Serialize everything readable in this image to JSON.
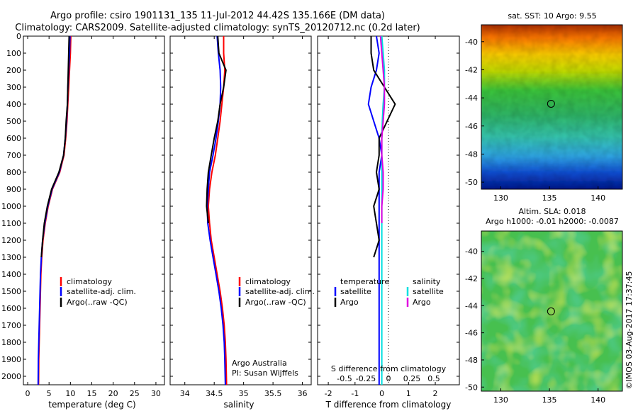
{
  "title": {
    "line1": "Argo profile: csiro 1901131_135 11-Jul-2012 44.42S 135.166E (DM data)",
    "line2": "Climatology: CARS2009. Satellite-adjusted climatology: synTS_20120712.nc (0.2d later)"
  },
  "credit": {
    "org": "Argo Australia",
    "pi": "PI: Susan Wijffels",
    "stamp": "©IMOS 03-Aug-2017 17:37:45"
  },
  "colors": {
    "climatology": "#ff0000",
    "satellite": "#0000ff",
    "argo": "#000000",
    "sal_satellite": "#00e0e0",
    "sal_argo": "#e000e0"
  },
  "chart_data": [
    {
      "type": "line",
      "xlabel": "temperature (deg C)",
      "xlim": [
        -1,
        32
      ],
      "xticks": [
        0,
        5,
        10,
        15,
        20,
        25,
        30
      ],
      "ylim": [
        2050,
        0
      ],
      "yticks": [
        0,
        100,
        200,
        300,
        400,
        500,
        600,
        700,
        800,
        900,
        1000,
        1100,
        1200,
        1300,
        1400,
        1500,
        1600,
        1700,
        1800,
        1900,
        2000
      ],
      "legend": [
        "climatology",
        "satellite-adj. clim.",
        "Argo(..raw -QC)"
      ],
      "series": [
        {
          "name": "climatology",
          "color": "#ff0000",
          "x": [
            10.1,
            10.0,
            9.8,
            9.6,
            9.4,
            9.2,
            8.9,
            8.5,
            7.5,
            5.8,
            4.8,
            4.1,
            3.6,
            3.3,
            3.1,
            3.0,
            2.9,
            2.8,
            2.7,
            2.6,
            2.55
          ],
          "y": [
            0,
            100,
            200,
            300,
            400,
            500,
            600,
            700,
            800,
            900,
            1000,
            1100,
            1200,
            1300,
            1400,
            1500,
            1600,
            1700,
            1800,
            1900,
            2050
          ]
        },
        {
          "name": "satellite-adj. clim.",
          "color": "#0000ff",
          "x": [
            9.9,
            9.8,
            9.6,
            9.4,
            9.3,
            9.1,
            8.8,
            8.4,
            7.4,
            5.7,
            4.7,
            4.0,
            3.5,
            3.2,
            3.0,
            2.9,
            2.8,
            2.7,
            2.6,
            2.5,
            2.45
          ],
          "y": [
            0,
            100,
            200,
            300,
            400,
            500,
            600,
            700,
            800,
            900,
            1000,
            1100,
            1200,
            1300,
            1400,
            1500,
            1600,
            1700,
            1800,
            1900,
            2050
          ]
        },
        {
          "name": "Argo(..raw -QC)",
          "color": "#000000",
          "x": [
            9.7,
            9.6,
            9.5,
            9.4,
            9.3,
            9.0,
            8.8,
            8.4,
            7.3,
            5.6,
            4.6,
            3.9,
            3.5,
            3.2
          ],
          "y": [
            0,
            100,
            200,
            300,
            400,
            500,
            600,
            700,
            800,
            900,
            1000,
            1100,
            1200,
            1300
          ]
        }
      ]
    },
    {
      "type": "line",
      "xlabel": "salinity",
      "xlim": [
        33.75,
        36.15
      ],
      "xticks": [
        34,
        34.5,
        35,
        35.5,
        36
      ],
      "ylim": [
        2050,
        0
      ],
      "legend": [
        "climatology",
        "satellite-adj. clim.",
        "Argo(..raw -QC)"
      ],
      "series": [
        {
          "name": "climatology",
          "color": "#ff0000",
          "x": [
            34.66,
            34.66,
            34.68,
            34.66,
            34.63,
            34.6,
            34.56,
            34.52,
            34.46,
            34.42,
            34.4,
            34.42,
            34.45,
            34.5,
            34.55,
            34.6,
            34.64,
            34.67,
            34.69,
            34.7,
            34.71
          ],
          "y": [
            0,
            100,
            200,
            300,
            400,
            500,
            600,
            700,
            800,
            900,
            1000,
            1100,
            1200,
            1300,
            1400,
            1500,
            1600,
            1700,
            1800,
            1900,
            2050
          ]
        },
        {
          "name": "satellite-adj. clim.",
          "color": "#0000ff",
          "x": [
            34.55,
            34.57,
            34.6,
            34.61,
            34.6,
            34.57,
            34.53,
            34.48,
            34.42,
            34.4,
            34.38,
            34.39,
            34.43,
            34.48,
            34.53,
            34.58,
            34.62,
            34.65,
            34.67,
            34.68,
            34.69
          ],
          "y": [
            0,
            100,
            200,
            300,
            400,
            500,
            600,
            700,
            800,
            900,
            1000,
            1100,
            1200,
            1300,
            1400,
            1500,
            1600,
            1700,
            1800,
            1900,
            2050
          ]
        },
        {
          "name": "Argo(..raw -QC)",
          "color": "#000000",
          "x": [
            34.56,
            34.58,
            34.7,
            34.66,
            34.6,
            34.56,
            34.5,
            34.45,
            34.4,
            34.38,
            34.37,
            34.4
          ],
          "y": [
            0,
            100,
            200,
            300,
            400,
            500,
            600,
            700,
            800,
            900,
            1000,
            1100
          ]
        }
      ]
    },
    {
      "type": "line",
      "xlabel": "T difference from climatology",
      "xlabel_top": "S difference from climatology",
      "xlim": [
        -2.4,
        2.9
      ],
      "xticks": [
        -2,
        -1,
        0,
        1,
        2
      ],
      "xticks_top": [
        "-0.5",
        "-0.25",
        "0",
        "0.25",
        "0.5"
      ],
      "ylim": [
        2050,
        0
      ],
      "legend_temperature": {
        "header": "temperature",
        "entries": [
          "satellite",
          "Argo"
        ]
      },
      "legend_salinity": {
        "header": "salinity",
        "entries": [
          "satellite",
          "Argo"
        ]
      },
      "series": [
        {
          "name": "temperature satellite",
          "color": "#0000ff",
          "x": [
            -0.2,
            -0.1,
            -0.2,
            -0.4,
            -0.5,
            -0.3,
            -0.1,
            0,
            -0.1,
            -0.1,
            -0.1,
            -0.1,
            -0.1,
            -0.1,
            -0.1,
            -0.1,
            -0.1,
            -0.1,
            -0.1,
            -0.1,
            -0.1
          ],
          "y": [
            0,
            100,
            200,
            300,
            400,
            500,
            600,
            700,
            800,
            900,
            1000,
            1100,
            1200,
            1300,
            1400,
            1500,
            1600,
            1700,
            1800,
            1900,
            2050
          ]
        },
        {
          "name": "temperature Argo",
          "color": "#000000",
          "x": [
            -0.4,
            -0.4,
            -0.3,
            0.1,
            0.5,
            0.2,
            -0.1,
            -0.1,
            -0.2,
            -0.1,
            -0.3,
            -0.2,
            -0.1,
            -0.3
          ],
          "y": [
            0,
            100,
            200,
            300,
            400,
            500,
            600,
            700,
            800,
            900,
            1000,
            1100,
            1200,
            1300
          ]
        },
        {
          "name": "salinity satellite",
          "color": "#00e0e0",
          "x": [
            0,
            0.05,
            0.1,
            0.1,
            0.05,
            0.02,
            0,
            0,
            0,
            0,
            0,
            0,
            0,
            0,
            0,
            0,
            0,
            0,
            0,
            0,
            0
          ],
          "y": [
            0,
            100,
            200,
            300,
            400,
            500,
            600,
            700,
            800,
            900,
            1000,
            1100,
            1200,
            1300,
            1400,
            1500,
            1600,
            1700,
            1800,
            1900,
            2050
          ]
        },
        {
          "name": "salinity Argo",
          "color": "#e000e0",
          "x": [
            -0.05,
            0,
            0.05,
            0.1,
            0.1,
            0.05,
            0,
            0,
            0.05,
            0.05,
            0,
            0
          ],
          "y": [
            0,
            100,
            200,
            300,
            400,
            500,
            600,
            700,
            800,
            900,
            1000,
            1100
          ]
        }
      ]
    },
    {
      "type": "heatmap",
      "title": "sat. SST: 10 Argo: 9.55",
      "xlim": [
        128,
        142.5
      ],
      "ylim": [
        -50.5,
        -38.8
      ],
      "xticks": [
        130,
        135,
        140
      ],
      "yticks": [
        -40,
        -42,
        -44,
        -46,
        -48,
        -50
      ],
      "marker": {
        "lon": 135.166,
        "lat": -44.42
      }
    },
    {
      "type": "heatmap",
      "title": "Altim. SLA: 0.018",
      "subtitle": "Argo h1000: -0.01 h2000: -0.0087",
      "xlim": [
        128,
        142.5
      ],
      "ylim": [
        -50.3,
        -38.5
      ],
      "xticks": [
        130,
        135,
        140
      ],
      "yticks": [
        -40,
        -42,
        -44,
        -46,
        -48,
        -50
      ],
      "marker": {
        "lon": 135.166,
        "lat": -44.42
      }
    }
  ]
}
